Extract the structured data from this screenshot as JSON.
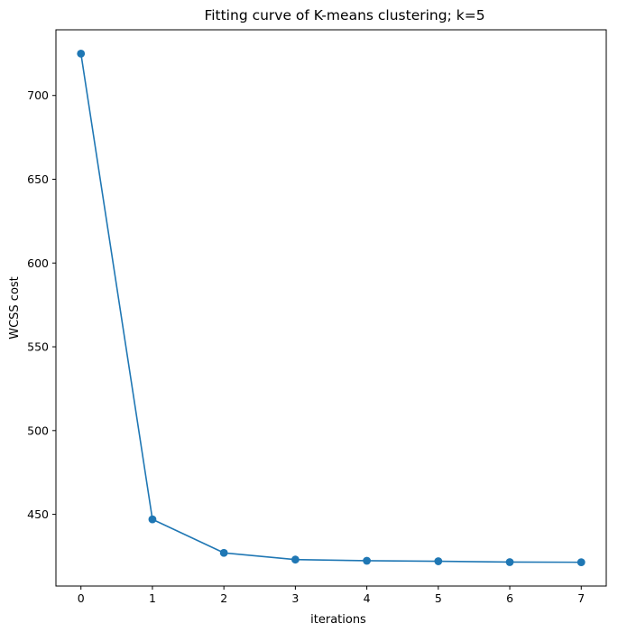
{
  "chart_data": {
    "type": "line",
    "title": "Fitting curve of K-means clustering; k=5",
    "xlabel": "iterations",
    "ylabel": "WCSS cost",
    "x": [
      0,
      1,
      2,
      3,
      4,
      5,
      6,
      7
    ],
    "series": [
      {
        "values": [
          725,
          447,
          427,
          423,
          422.3,
          422,
          421.5,
          421.4
        ],
        "color": "#1f77b4",
        "marker": "circle"
      }
    ],
    "xlim": [
      -0.35,
      7.35
    ],
    "ylim": [
      407.2,
      739.2
    ],
    "xticks": [
      "0",
      "1",
      "2",
      "3",
      "4",
      "5",
      "6",
      "7"
    ],
    "yticks": [
      "450",
      "500",
      "550",
      "600",
      "650",
      "700"
    ],
    "grid": false
  }
}
